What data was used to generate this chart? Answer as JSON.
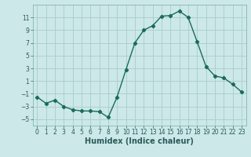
{
  "x": [
    0,
    1,
    2,
    3,
    4,
    5,
    6,
    7,
    8,
    9,
    10,
    11,
    12,
    13,
    14,
    15,
    16,
    17,
    18,
    19,
    20,
    21,
    22,
    23
  ],
  "y": [
    -1.5,
    -2.5,
    -2.0,
    -3.0,
    -3.5,
    -3.7,
    -3.7,
    -3.8,
    -4.7,
    -1.5,
    2.8,
    7.0,
    9.0,
    9.7,
    11.2,
    11.3,
    12.0,
    11.0,
    7.2,
    3.3,
    1.8,
    1.5,
    0.5,
    -0.7
  ],
  "line_color": "#1a6b5a",
  "marker": "D",
  "marker_size": 2.2,
  "background_color": "#cce8e8",
  "grid_color": "#aacccc",
  "xlabel": "Humidex (Indice chaleur)",
  "xlim": [
    -0.5,
    23.5
  ],
  "ylim": [
    -6,
    13
  ],
  "yticks": [
    -5,
    -3,
    -1,
    1,
    3,
    5,
    7,
    9,
    11
  ],
  "xticks": [
    0,
    1,
    2,
    3,
    4,
    5,
    6,
    7,
    8,
    9,
    10,
    11,
    12,
    13,
    14,
    15,
    16,
    17,
    18,
    19,
    20,
    21,
    22,
    23
  ],
  "tick_labelsize": 5.5,
  "xlabel_fontsize": 7.0,
  "linewidth": 1.0
}
